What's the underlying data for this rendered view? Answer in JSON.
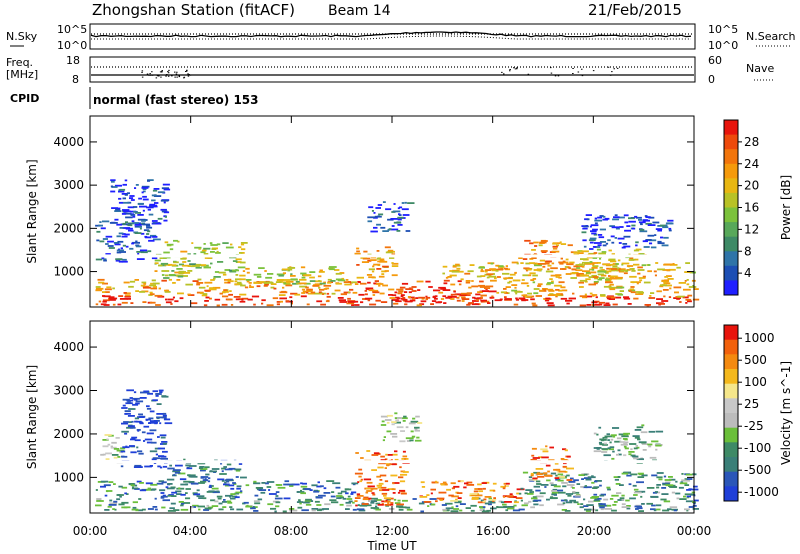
{
  "header": {
    "title": "Zhongshan Station (fitACF)",
    "beam": "Beam 14",
    "date": "21/Feb/2015"
  },
  "noise_panel": {
    "left_label": "N.Sky",
    "right_label": "N.Search",
    "tick_top": "10^5",
    "tick_bottom": "10^0"
  },
  "freq_panel": {
    "left_label_1": "Freq.",
    "left_label_2": "[MHz]",
    "right_label": "Nave",
    "left_tick_top": "18",
    "left_tick_bottom": "8",
    "right_tick_top": "60",
    "right_tick_bottom": "0"
  },
  "cpid": {
    "label": "CPID",
    "value": "normal (fast stereo) 153"
  },
  "x_axis": {
    "label": "Time UT",
    "ticks": [
      "00:00",
      "04:00",
      "08:00",
      "12:00",
      "16:00",
      "20:00",
      "00:00"
    ]
  },
  "chart_data": [
    {
      "type": "heatmap",
      "ylabel": "Slant Range [km]",
      "y_ticks": [
        "1000",
        "2000",
        "3000",
        "4000"
      ],
      "ylim": [
        180,
        4600
      ],
      "xlim": [
        0,
        24
      ],
      "colorbar": {
        "label": "Power [dB]",
        "ticks": [
          "4",
          "8",
          "12",
          "16",
          "20",
          "24",
          "28"
        ],
        "colors": [
          "#1f1fff",
          "#1d4fb4",
          "#2f74a8",
          "#3e8a66",
          "#58a85a",
          "#7cc23c",
          "#b8c226",
          "#e8b712",
          "#f59a0c",
          "#f2750c",
          "#ee4a0c",
          "#e8140c"
        ]
      },
      "blocks": [
        {
          "t": [
            0.2,
            24
          ],
          "r": [
            200,
            420
          ],
          "level": 0.92
        },
        {
          "t": [
            0.2,
            10.5
          ],
          "r": [
            420,
            800
          ],
          "level": 0.7
        },
        {
          "t": [
            10.5,
            16
          ],
          "r": [
            300,
            780
          ],
          "level": 0.85
        },
        {
          "t": [
            16,
            24
          ],
          "r": [
            400,
            1200
          ],
          "level": 0.65
        },
        {
          "t": [
            0.2,
            2.5
          ],
          "r": [
            1200,
            2200
          ],
          "level": 0.15
        },
        {
          "t": [
            2.5,
            6
          ],
          "r": [
            800,
            1700
          ],
          "level": 0.5
        },
        {
          "t": [
            6,
            10
          ],
          "r": [
            700,
            1100
          ],
          "level": 0.55
        },
        {
          "t": [
            10.5,
            12
          ],
          "r": [
            800,
            1600
          ],
          "level": 0.7
        },
        {
          "t": [
            11,
            12.6
          ],
          "r": [
            1900,
            2600
          ],
          "level": 0.1
        },
        {
          "t": [
            14,
            16.5
          ],
          "r": [
            800,
            1200
          ],
          "level": 0.65
        },
        {
          "t": [
            17,
            19
          ],
          "r": [
            1000,
            1700
          ],
          "level": 0.75
        },
        {
          "t": [
            19,
            22
          ],
          "r": [
            800,
            1500
          ],
          "level": 0.6
        },
        {
          "t": [
            19.5,
            23
          ],
          "r": [
            1500,
            2300
          ],
          "level": 0.12
        },
        {
          "t": [
            0.8,
            3
          ],
          "r": [
            2000,
            3100
          ],
          "level": 0.1
        }
      ]
    },
    {
      "type": "heatmap",
      "ylabel": "Slant Range [km]",
      "y_ticks": [
        "1000",
        "2000",
        "3000",
        "4000"
      ],
      "ylim": [
        180,
        4600
      ],
      "xlim": [
        0,
        24
      ],
      "colorbar": {
        "label": "Velocity [m s^-1]",
        "ticks": [
          "1000",
          "500",
          "100",
          "25",
          "-25",
          "-100",
          "-500",
          "-1000"
        ],
        "colors": [
          "#1f3fd8",
          "#2a56b8",
          "#3a7f78",
          "#3e8a66",
          "#6bbf3a",
          "#bcbcbc",
          "#c8c8c8",
          "#f5e68a",
          "#f4b81c",
          "#f48a10",
          "#f2610c",
          "#e8140c"
        ]
      },
      "blocks": [
        {
          "t": [
            0.2,
            24
          ],
          "r": [
            200,
            500
          ],
          "level": 0.3
        },
        {
          "t": [
            0.2,
            10.5
          ],
          "r": [
            500,
            900
          ],
          "level": 0.2
        },
        {
          "t": [
            10.5,
            12.5
          ],
          "r": [
            300,
            1600
          ],
          "level": 0.85
        },
        {
          "t": [
            13,
            17
          ],
          "r": [
            400,
            900
          ],
          "level": 0.8
        },
        {
          "t": [
            17,
            24
          ],
          "r": [
            500,
            1100
          ],
          "level": 0.28
        },
        {
          "t": [
            0.4,
            1.2
          ],
          "r": [
            1300,
            2000
          ],
          "level": 0.45
        },
        {
          "t": [
            1.2,
            3
          ],
          "r": [
            1200,
            3000
          ],
          "level": 0.05
        },
        {
          "t": [
            3,
            6
          ],
          "r": [
            800,
            1400
          ],
          "level": 0.2
        },
        {
          "t": [
            11.5,
            13
          ],
          "r": [
            1800,
            2500
          ],
          "level": 0.45
        },
        {
          "t": [
            17.5,
            19
          ],
          "r": [
            900,
            1700
          ],
          "level": 0.8
        },
        {
          "t": [
            20,
            22.5
          ],
          "r": [
            1300,
            2200
          ],
          "level": 0.35
        },
        {
          "t": [
            23.5,
            24
          ],
          "r": [
            300,
            800
          ],
          "level": 0.02
        }
      ]
    }
  ]
}
